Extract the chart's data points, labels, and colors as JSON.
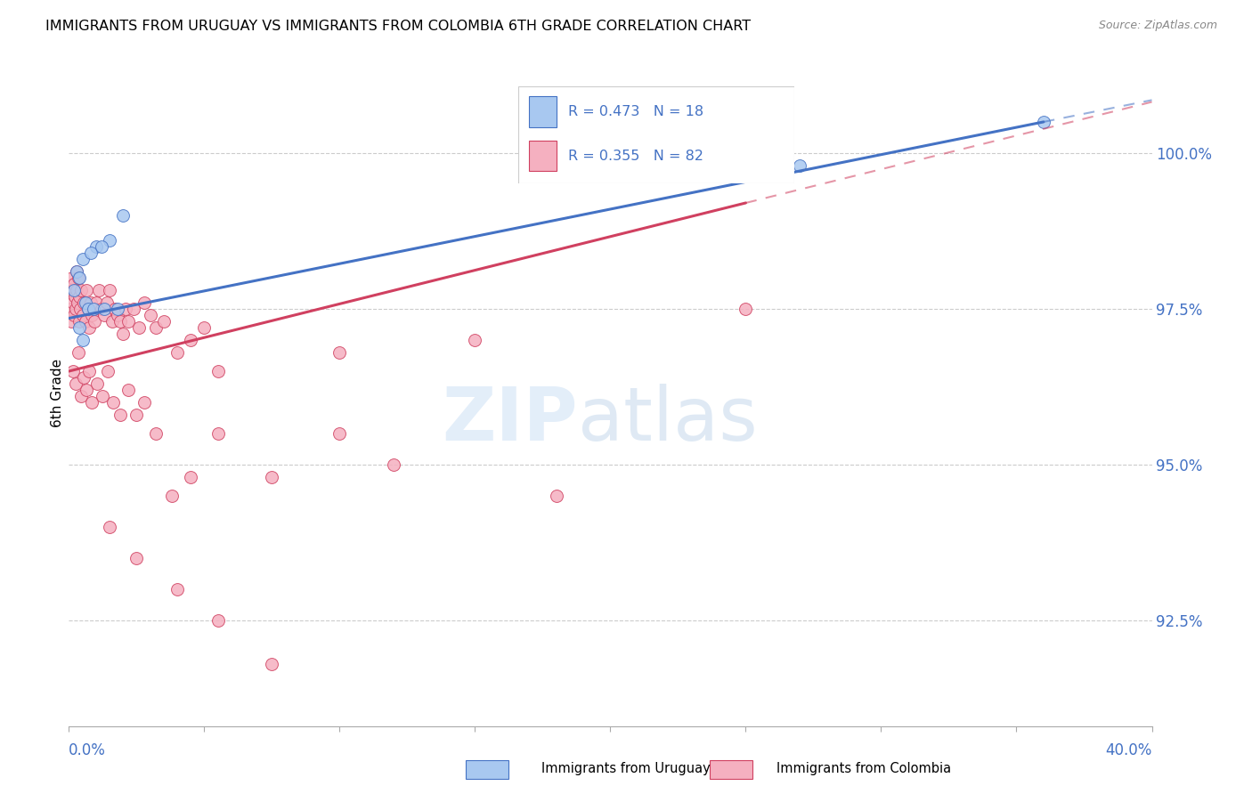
{
  "title": "IMMIGRANTS FROM URUGUAY VS IMMIGRANTS FROM COLOMBIA 6TH GRADE CORRELATION CHART",
  "source": "Source: ZipAtlas.com",
  "ylabel": "6th Grade",
  "ytick_values": [
    92.5,
    95.0,
    97.5,
    100.0
  ],
  "xmin": 0.0,
  "xmax": 40.0,
  "ymin": 90.8,
  "ymax": 101.5,
  "legend_r1": "R = 0.473",
  "legend_n1": "N = 18",
  "legend_r2": "R = 0.355",
  "legend_n2": "N = 82",
  "color_uruguay": "#a8c8f0",
  "color_colombia": "#f5b0c0",
  "color_trendline_uruguay": "#4472C4",
  "color_trendline_colombia": "#d04060",
  "uruguay_x": [
    0.3,
    0.5,
    1.0,
    1.5,
    2.0,
    0.2,
    0.4,
    0.8,
    1.2,
    0.6,
    0.7,
    1.8,
    0.9,
    1.3,
    0.4,
    0.5,
    27.0,
    36.0
  ],
  "uruguay_y": [
    98.1,
    98.3,
    98.5,
    98.6,
    99.0,
    97.8,
    98.0,
    98.4,
    98.5,
    97.6,
    97.5,
    97.5,
    97.5,
    97.5,
    97.2,
    97.0,
    99.8,
    100.5
  ],
  "colombia_x": [
    0.05,
    0.08,
    0.1,
    0.12,
    0.15,
    0.18,
    0.2,
    0.22,
    0.25,
    0.28,
    0.3,
    0.32,
    0.35,
    0.38,
    0.4,
    0.42,
    0.45,
    0.5,
    0.55,
    0.6,
    0.65,
    0.7,
    0.75,
    0.8,
    0.85,
    0.9,
    0.95,
    1.0,
    1.1,
    1.2,
    1.3,
    1.4,
    1.5,
    1.6,
    1.7,
    1.8,
    1.9,
    2.0,
    2.1,
    2.2,
    2.4,
    2.6,
    2.8,
    3.0,
    3.2,
    3.5,
    4.0,
    4.5,
    5.0,
    5.5,
    0.15,
    0.25,
    0.35,
    0.45,
    0.55,
    0.65,
    0.75,
    0.85,
    1.05,
    1.25,
    1.45,
    1.65,
    1.9,
    2.2,
    2.5,
    2.8,
    3.2,
    3.8,
    4.5,
    5.5,
    7.5,
    10.0,
    12.0,
    15.0,
    18.0,
    25.0,
    10.0,
    1.5,
    2.5,
    4.0,
    5.5,
    7.5
  ],
  "colombia_y": [
    97.5,
    97.3,
    97.8,
    98.0,
    97.6,
    97.9,
    97.4,
    97.7,
    97.5,
    98.1,
    97.8,
    97.6,
    98.0,
    97.3,
    97.7,
    97.5,
    97.8,
    97.4,
    97.6,
    97.3,
    97.8,
    97.5,
    97.2,
    97.6,
    97.4,
    97.5,
    97.3,
    97.6,
    97.8,
    97.5,
    97.4,
    97.6,
    97.8,
    97.3,
    97.5,
    97.4,
    97.3,
    97.1,
    97.5,
    97.3,
    97.5,
    97.2,
    97.6,
    97.4,
    97.2,
    97.3,
    96.8,
    97.0,
    97.2,
    96.5,
    96.5,
    96.3,
    96.8,
    96.1,
    96.4,
    96.2,
    96.5,
    96.0,
    96.3,
    96.1,
    96.5,
    96.0,
    95.8,
    96.2,
    95.8,
    96.0,
    95.5,
    94.5,
    94.8,
    95.5,
    94.8,
    95.5,
    95.0,
    97.0,
    94.5,
    97.5,
    96.8,
    94.0,
    93.5,
    93.0,
    92.5,
    91.8
  ],
  "blue_line_x0": 0.0,
  "blue_line_y0": 97.35,
  "blue_line_x1": 36.0,
  "blue_line_y1": 100.5,
  "pink_line_x0": 0.0,
  "pink_line_y0": 96.5,
  "pink_line_x1": 25.0,
  "pink_line_y1": 99.2
}
